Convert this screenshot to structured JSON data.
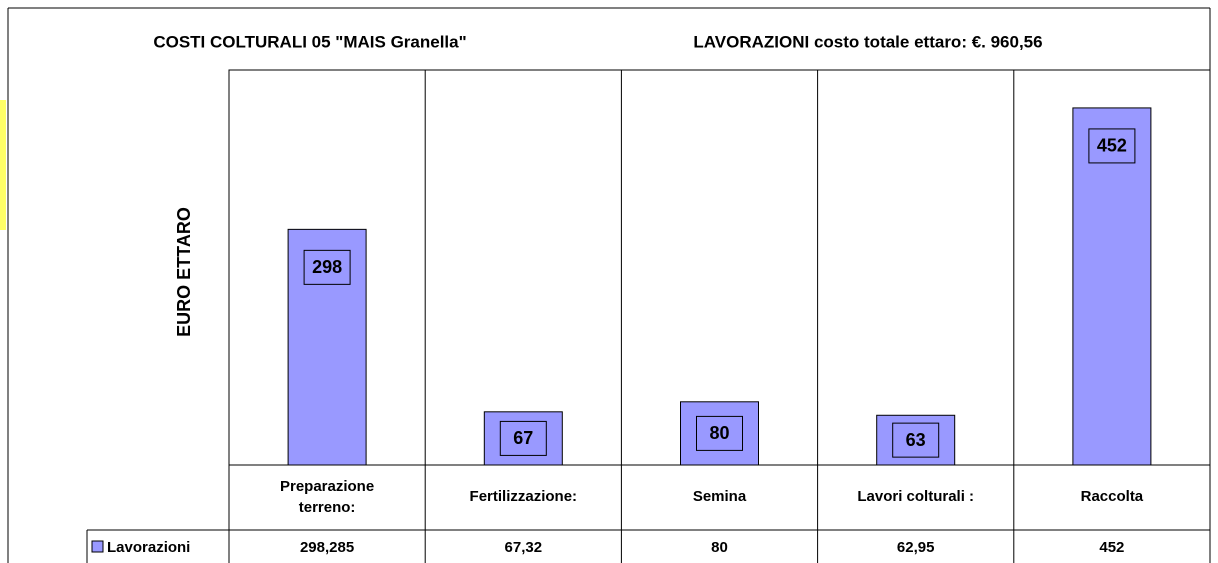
{
  "chart_data": {
    "type": "bar",
    "title": "COSTI COLTURALI 05 \"MAIS  Granella\"",
    "subtitle": "LAVORAZIONI costo totale ettaro: €. 960,56",
    "y_label": "EURO ETTARO",
    "categories": [
      "Preparazione terreno:",
      "Fertilizzazione:",
      "Semina",
      "Lavori colturali :",
      "Raccolta"
    ],
    "series": [
      {
        "name": "Lavorazioni",
        "color": "#9999ff",
        "values": [
          298.285,
          67.32,
          80,
          62.95,
          452
        ],
        "value_labels": [
          "298",
          "67",
          "80",
          "63",
          "452"
        ]
      }
    ],
    "data_table": [
      "298,285",
      "67,32",
      "80",
      "62,95",
      "452"
    ],
    "ylim": [
      0,
      500
    ]
  }
}
